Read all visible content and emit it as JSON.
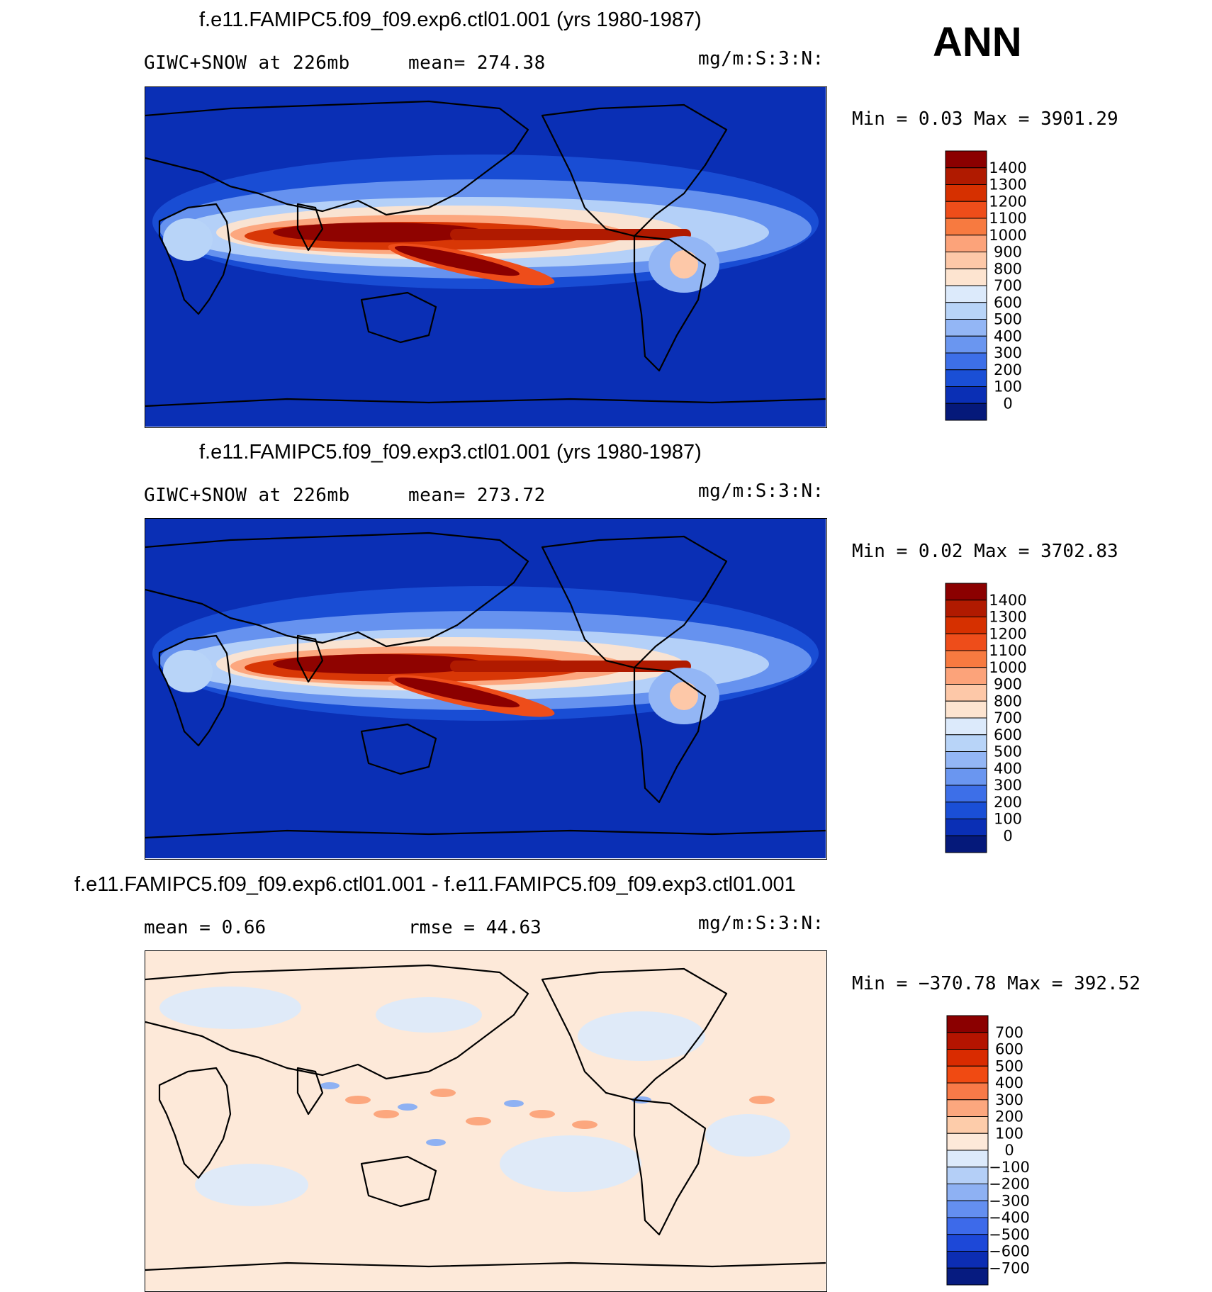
{
  "season": "ANN",
  "panels": [
    {
      "title": "f.e11.FAMIPC5.f09_f09.exp6.ctl01.001 (yrs 1980-1987)",
      "variable": "GIWC+SNOW at 226mb",
      "mean": "mean= 274.38",
      "units": "mg/m:S:3:N:",
      "minmax": "Min =    0.03 Max = 3901.29",
      "palette": "abs",
      "levels": [
        "1400",
        "1300",
        "1200",
        "1100",
        "1000",
        "900",
        "800",
        "700",
        "600",
        "500",
        "400",
        "300",
        "200",
        "100",
        "0"
      ]
    },
    {
      "title": "f.e11.FAMIPC5.f09_f09.exp3.ctl01.001 (yrs 1980-1987)",
      "variable": "GIWC+SNOW at 226mb",
      "mean": "mean= 273.72",
      "units": "mg/m:S:3:N:",
      "minmax": "Min =    0.02 Max = 3702.83",
      "palette": "abs",
      "levels": [
        "1400",
        "1300",
        "1200",
        "1100",
        "1000",
        "900",
        "800",
        "700",
        "600",
        "500",
        "400",
        "300",
        "200",
        "100",
        "0"
      ]
    },
    {
      "title": "f.e11.FAMIPC5.f09_f09.exp6.ctl01.001 - f.e11.FAMIPC5.f09_f09.exp3.ctl01.001",
      "variable": "mean =    0.66",
      "mean": "rmse =   44.63",
      "units": "mg/m:S:3:N:",
      "minmax": "Min = −370.78 Max =  392.52",
      "palette": "diff",
      "levels": [
        "700",
        "600",
        "500",
        "400",
        "300",
        "200",
        "100",
        "0",
        "−100",
        "−200",
        "−300",
        "−400",
        "−500",
        "−600",
        "−700"
      ]
    }
  ],
  "colors": {
    "abs": [
      "#8b0000",
      "#b01a00",
      "#d63000",
      "#ee4d1a",
      "#f77a40",
      "#fca37a",
      "#fdc8a8",
      "#fde4d0",
      "#dceafb",
      "#b8d4f8",
      "#93b6f5",
      "#6a96f0",
      "#3d6fe8",
      "#1a4fd6",
      "#0a2fb5",
      "#05197a"
    ],
    "diff": [
      "#8b0000",
      "#b41400",
      "#d92b00",
      "#f04a12",
      "#f87a48",
      "#fca77e",
      "#fdccaa",
      "#fde9d9",
      "#dceafb",
      "#b4cff7",
      "#8eb1f3",
      "#648ff0",
      "#3d6aea",
      "#1d48d8",
      "#0c2db3",
      "#061b80"
    ]
  }
}
